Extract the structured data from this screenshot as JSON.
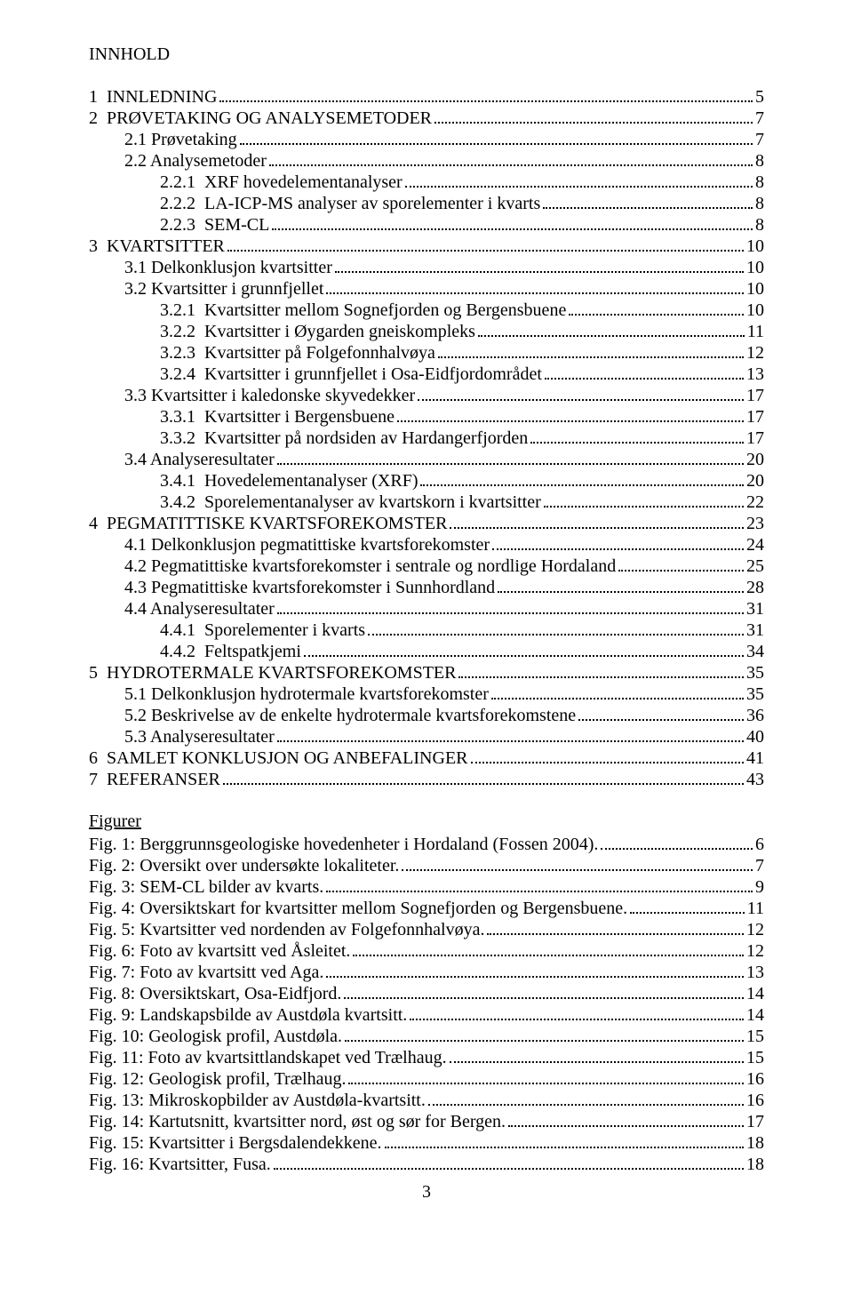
{
  "title": "INNHOLD",
  "toc": [
    {
      "indent": 0,
      "num": "1",
      "text": "INNLEDNING",
      "page": "5"
    },
    {
      "indent": 0,
      "num": "2",
      "text": "PRØVETAKING OG ANALYSEMETODER",
      "page": "7"
    },
    {
      "indent": 1,
      "num": "",
      "text": "2.1 Prøvetaking",
      "page": "7"
    },
    {
      "indent": 1,
      "num": "",
      "text": "2.2 Analysemetoder",
      "page": "8"
    },
    {
      "indent": 2,
      "num": "2.2.1",
      "text": "XRF hovedelementanalyser",
      "page": "8"
    },
    {
      "indent": 2,
      "num": "2.2.2",
      "text": "LA-ICP-MS analyser av sporelementer i kvarts",
      "page": "8"
    },
    {
      "indent": 2,
      "num": "2.2.3",
      "text": "SEM-CL",
      "page": "8"
    },
    {
      "indent": 0,
      "num": "3",
      "text": "KVARTSITTER",
      "page": "10"
    },
    {
      "indent": 1,
      "num": "",
      "text": "3.1 Delkonklusjon kvartsitter",
      "page": "10"
    },
    {
      "indent": 1,
      "num": "",
      "text": "3.2 Kvartsitter i grunnfjellet",
      "page": "10"
    },
    {
      "indent": 2,
      "num": "3.2.1",
      "text": "Kvartsitter mellom Sognefjorden og Bergensbuene",
      "page": "10"
    },
    {
      "indent": 2,
      "num": "3.2.2",
      "text": "Kvartsitter i Øygarden gneiskompleks",
      "page": "11"
    },
    {
      "indent": 2,
      "num": "3.2.3",
      "text": "Kvartsitter på Folgefonnhalvøya",
      "page": "12"
    },
    {
      "indent": 2,
      "num": "3.2.4",
      "text": "Kvartsitter i grunnfjellet i Osa-Eidfjordområdet",
      "page": "13"
    },
    {
      "indent": 1,
      "num": "",
      "text": "3.3 Kvartsitter i kaledonske skyvedekker",
      "page": "17"
    },
    {
      "indent": 2,
      "num": "3.3.1",
      "text": "Kvartsitter i Bergensbuene",
      "page": "17"
    },
    {
      "indent": 2,
      "num": "3.3.2",
      "text": "Kvartsitter på nordsiden av Hardangerfjorden",
      "page": "17"
    },
    {
      "indent": 1,
      "num": "",
      "text": "3.4 Analyseresultater",
      "page": "20"
    },
    {
      "indent": 2,
      "num": "3.4.1",
      "text": "Hovedelementanalyser (XRF)",
      "page": "20"
    },
    {
      "indent": 2,
      "num": "3.4.2",
      "text": "Sporelementanalyser av kvartskorn i kvartsitter",
      "page": "22"
    },
    {
      "indent": 0,
      "num": "4",
      "text": "PEGMATITTISKE KVARTSFOREKOMSTER",
      "page": "23"
    },
    {
      "indent": 1,
      "num": "",
      "text": "4.1 Delkonklusjon pegmatittiske kvartsforekomster",
      "page": "24"
    },
    {
      "indent": 1,
      "num": "",
      "text": "4.2 Pegmatittiske kvartsforekomster i sentrale og nordlige Hordaland",
      "page": "25"
    },
    {
      "indent": 1,
      "num": "",
      "text": "4.3 Pegmatittiske kvartsforekomster i Sunnhordland",
      "page": "28"
    },
    {
      "indent": 1,
      "num": "",
      "text": "4.4 Analyseresultater",
      "page": "31"
    },
    {
      "indent": 2,
      "num": "4.4.1",
      "text": "Sporelementer i kvarts",
      "page": "31"
    },
    {
      "indent": 2,
      "num": "4.4.2",
      "text": "Feltspatkjemi",
      "page": "34"
    },
    {
      "indent": 0,
      "num": "5",
      "text": "HYDROTERMALE KVARTSFOREKOMSTER",
      "page": "35"
    },
    {
      "indent": 1,
      "num": "",
      "text": "5.1 Delkonklusjon hydrotermale kvartsforekomster",
      "page": "35"
    },
    {
      "indent": 1,
      "num": "",
      "text": "5.2 Beskrivelse av de enkelte hydrotermale kvartsforekomstene",
      "page": "36"
    },
    {
      "indent": 1,
      "num": "",
      "text": "5.3 Analyseresultater",
      "page": "40"
    },
    {
      "indent": 0,
      "num": "6",
      "text": "SAMLET KONKLUSJON OG ANBEFALINGER",
      "page": "41"
    },
    {
      "indent": 0,
      "num": "7",
      "text": "REFERANSER",
      "page": "43"
    }
  ],
  "figuresTitle": "Figurer",
  "figures": [
    {
      "text": "Fig. 1: Berggrunnsgeologiske hovedenheter i Hordaland (Fossen 2004).",
      "page": "6"
    },
    {
      "text": "Fig. 2: Oversikt over undersøkte lokaliteter.",
      "page": "7"
    },
    {
      "text": "Fig. 3: SEM-CL bilder av kvarts.",
      "page": "9"
    },
    {
      "text": "Fig. 4: Oversiktskart for kvartsitter mellom Sognefjorden og Bergensbuene.",
      "page": "11"
    },
    {
      "text": "Fig. 5: Kvartsitter ved nordenden av Folgefonnhalvøya.",
      "page": "12"
    },
    {
      "text": "Fig. 6: Foto av kvartsitt ved Åsleitet.",
      "page": "12"
    },
    {
      "text": "Fig. 7: Foto av kvartsitt ved Aga.",
      "page": "13"
    },
    {
      "text": "Fig. 8: Oversiktskart, Osa-Eidfjord.",
      "page": "14"
    },
    {
      "text": "Fig. 9: Landskapsbilde av Austdøla kvartsitt.",
      "page": "14"
    },
    {
      "text": "Fig. 10: Geologisk profil, Austdøla.",
      "page": "15"
    },
    {
      "text": "Fig. 11: Foto av kvartsittlandskapet ved Trælhaug.",
      "page": "15"
    },
    {
      "text": "Fig. 12: Geologisk  profil, Trælhaug.",
      "page": "16"
    },
    {
      "text": "Fig. 13: Mikroskopbilder av Austdøla-kvartsitt.",
      "page": "16"
    },
    {
      "text": "Fig. 14: Kartutsnitt, kvartsitter nord, øst og sør for Bergen.",
      "page": "17"
    },
    {
      "text": "Fig. 15: Kvartsitter i Bergsdalendekkene.",
      "page": "18"
    },
    {
      "text": "Fig. 16: Kvartsitter, Fusa.",
      "page": "18"
    }
  ],
  "pageNumber": "3"
}
